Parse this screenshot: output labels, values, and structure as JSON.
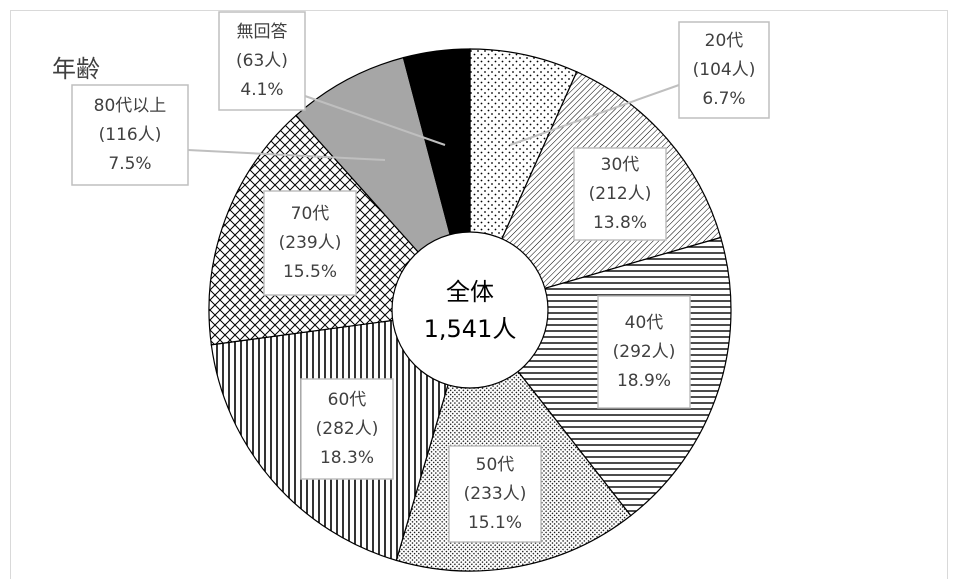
{
  "chart_data": {
    "type": "pie",
    "title": "年齢",
    "center_title": "全体",
    "total_label": "1,541人",
    "categories": [
      "20代",
      "30代",
      "40代",
      "50代",
      "60代",
      "70代",
      "80代以上",
      "無回答"
    ],
    "values": [
      6.7,
      13.8,
      18.9,
      15.1,
      18.3,
      15.5,
      7.5,
      4.1
    ],
    "value_labels": [
      "6.7%",
      "13.8%",
      "18.9%",
      "15.1%",
      "18.3%",
      "15.5%",
      "7.5%",
      "4.1%"
    ],
    "count_labels": [
      "(104人)",
      "(212人)",
      "(292人)",
      "(233人)",
      "(282人)",
      "(239人)",
      "(116人)",
      "(63人)"
    ],
    "patterns": [
      "dots",
      "diagonal-lines",
      "horizontal-lines",
      "dense-dots",
      "vertical-lines",
      "crosshatch",
      "#a6a6a6",
      "#000000"
    ]
  }
}
